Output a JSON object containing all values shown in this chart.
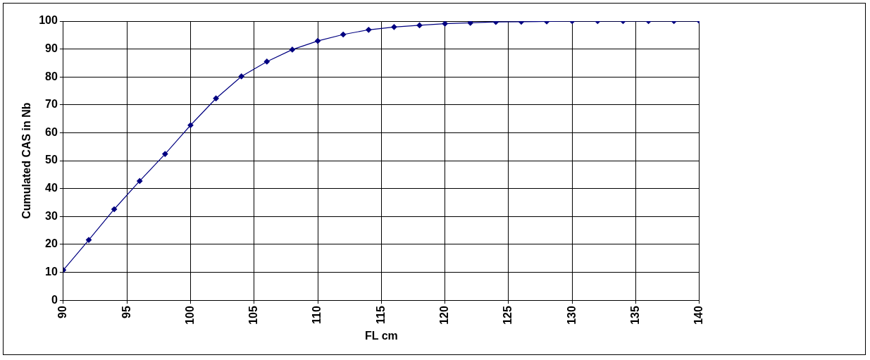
{
  "chart_data": {
    "type": "line",
    "xlabel": "FL cm",
    "ylabel": "Cumulated CAS in Nb",
    "x": [
      90,
      92,
      94,
      96,
      98,
      100,
      102,
      104,
      106,
      108,
      110,
      112,
      114,
      116,
      118,
      120,
      122,
      124,
      126,
      128,
      130,
      132,
      134,
      136,
      138,
      140
    ],
    "series": [
      {
        "color": "#000080",
        "values": [
          10.8,
          21.6,
          32.6,
          42.7,
          52.4,
          62.7,
          72.3,
          80.2,
          85.5,
          89.8,
          92.9,
          95.2,
          96.9,
          97.9,
          98.5,
          99.1,
          99.4,
          99.7,
          99.8,
          99.9,
          100,
          100,
          100,
          100,
          100,
          100
        ]
      }
    ],
    "xlim": [
      90,
      140
    ],
    "xticks": [
      90,
      95,
      100,
      105,
      110,
      115,
      120,
      125,
      130,
      135,
      140
    ],
    "ylim": [
      0,
      100
    ],
    "yticks": [
      0,
      10,
      20,
      30,
      40,
      50,
      60,
      70,
      80,
      90,
      100
    ],
    "grid": true,
    "marker": "diamond",
    "line_style": "solid",
    "legend": false
  }
}
